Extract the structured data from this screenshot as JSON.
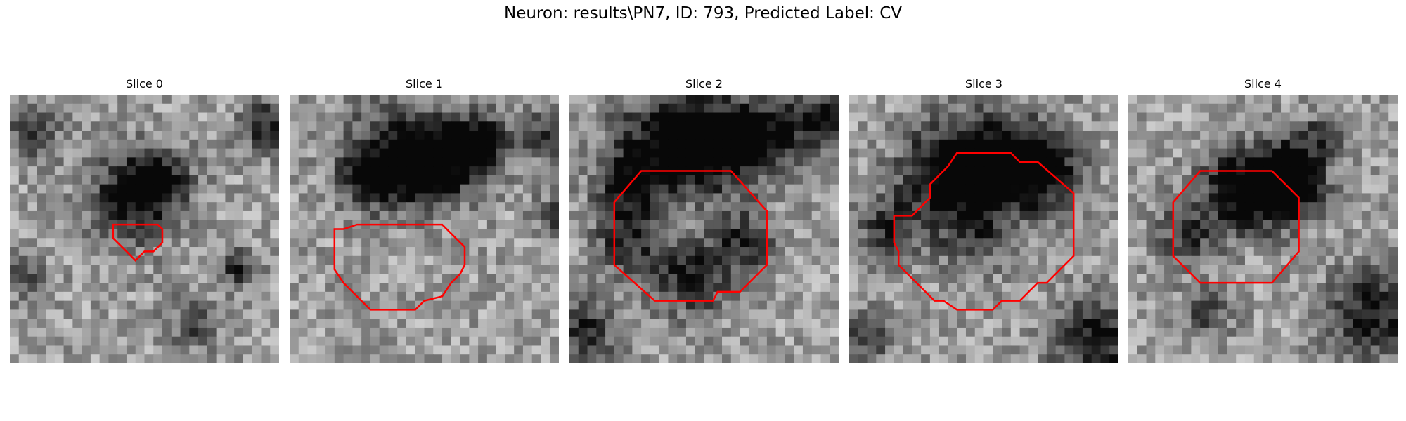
{
  "figure": {
    "title": "Neuron: results\\PN7, ID: 793, Predicted Label: CV"
  },
  "panels": [
    {
      "title": "Slice 0",
      "contour": [
        [
          11.5,
          14.5
        ],
        [
          11.5,
          16
        ],
        [
          13,
          17.5
        ],
        [
          14,
          18.5
        ],
        [
          15,
          17.5
        ],
        [
          16,
          17.5
        ],
        [
          17,
          16.5
        ],
        [
          17,
          15
        ],
        [
          16.5,
          14.5
        ]
      ],
      "dark_blobs": [
        [
          13,
          11,
          3.5,
          0.55
        ],
        [
          16,
          9,
          2.5,
          0.45
        ],
        [
          2,
          4,
          2,
          0.4
        ],
        [
          28,
          3,
          2,
          0.5
        ],
        [
          25,
          19,
          1.5,
          0.45
        ],
        [
          20,
          25,
          2,
          0.35
        ],
        [
          1,
          20,
          1.5,
          0.35
        ]
      ]
    },
    {
      "title": "Slice 1",
      "contour": [
        [
          5,
          15
        ],
        [
          6,
          15
        ],
        [
          7.5,
          14.5
        ],
        [
          17,
          14.5
        ],
        [
          19.5,
          17
        ],
        [
          19.5,
          19
        ],
        [
          19,
          20
        ],
        [
          18,
          21
        ],
        [
          17,
          22.5
        ],
        [
          15,
          23
        ],
        [
          14,
          24
        ],
        [
          9,
          24
        ],
        [
          6,
          21
        ],
        [
          5,
          19.5
        ]
      ],
      "dark_blobs": [
        [
          11,
          6,
          4,
          0.5
        ],
        [
          18,
          6,
          3,
          0.5
        ],
        [
          21,
          5,
          2,
          0.6
        ],
        [
          8,
          9,
          2,
          0.4
        ],
        [
          14,
          8,
          3,
          0.45
        ],
        [
          28,
          4,
          2,
          0.4
        ],
        [
          29,
          13,
          1.5,
          0.4
        ]
      ]
    },
    {
      "title": "Slice 2",
      "contour": [
        [
          5,
          12
        ],
        [
          8,
          8.5
        ],
        [
          18,
          8.5
        ],
        [
          22,
          13
        ],
        [
          22,
          19
        ],
        [
          19,
          22
        ],
        [
          16.5,
          22
        ],
        [
          16,
          23
        ],
        [
          9.5,
          23
        ],
        [
          5,
          19
        ]
      ],
      "dark_blobs": [
        [
          10,
          5,
          4,
          0.6
        ],
        [
          16,
          5,
          3.5,
          0.65
        ],
        [
          22,
          4,
          3,
          0.55
        ],
        [
          6,
          10,
          2.5,
          0.5
        ],
        [
          6,
          16,
          2.5,
          0.45
        ],
        [
          19,
          16,
          2.5,
          0.45
        ],
        [
          13,
          20,
          3,
          0.5
        ],
        [
          29,
          2,
          2.5,
          0.6
        ],
        [
          1,
          26,
          3,
          0.45
        ]
      ]
    },
    {
      "title": "Slice 3",
      "contour": [
        [
          5,
          13.5
        ],
        [
          7,
          13.5
        ],
        [
          9,
          11.5
        ],
        [
          9,
          10
        ],
        [
          11,
          8
        ],
        [
          12,
          6.5
        ],
        [
          18,
          6.5
        ],
        [
          19,
          7.5
        ],
        [
          21,
          7.5
        ],
        [
          25,
          11
        ],
        [
          25,
          18
        ],
        [
          22,
          21
        ],
        [
          21,
          21
        ],
        [
          20,
          22
        ],
        [
          19,
          23
        ],
        [
          17,
          23
        ],
        [
          16,
          24
        ],
        [
          12,
          24
        ],
        [
          10.5,
          23
        ],
        [
          9.5,
          23
        ],
        [
          5.5,
          19
        ],
        [
          5.5,
          17.5
        ],
        [
          5,
          16.5
        ]
      ],
      "dark_blobs": [
        [
          10,
          8,
          3.5,
          0.6
        ],
        [
          16,
          7,
          4,
          0.65
        ],
        [
          21,
          8,
          3,
          0.55
        ],
        [
          4,
          14,
          2.5,
          0.45
        ],
        [
          13,
          15,
          3,
          0.35
        ],
        [
          27,
          27,
          3.5,
          0.55
        ],
        [
          2,
          26,
          2,
          0.4
        ]
      ]
    },
    {
      "title": "Slice 4",
      "contour": [
        [
          5,
          12
        ],
        [
          8,
          8.5
        ],
        [
          16,
          8.5
        ],
        [
          19,
          11.5
        ],
        [
          19,
          17.5
        ],
        [
          16,
          21
        ],
        [
          8,
          21
        ],
        [
          5,
          18
        ]
      ],
      "dark_blobs": [
        [
          12,
          10,
          3,
          0.6
        ],
        [
          16,
          10,
          3,
          0.6
        ],
        [
          18,
          8,
          2.5,
          0.5
        ],
        [
          6,
          15,
          2.5,
          0.4
        ],
        [
          27,
          24,
          3.5,
          0.55
        ],
        [
          8,
          24,
          2,
          0.35
        ],
        [
          21,
          4,
          1.5,
          0.4
        ]
      ]
    }
  ]
}
